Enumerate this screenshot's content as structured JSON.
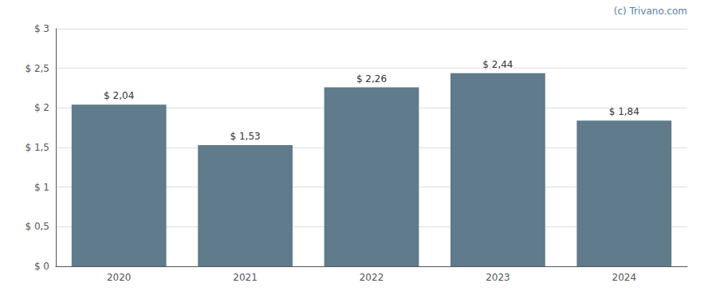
{
  "chart_data": {
    "type": "bar",
    "categories": [
      "2020",
      "2021",
      "2022",
      "2023",
      "2024"
    ],
    "values": [
      2.04,
      1.53,
      2.26,
      2.44,
      1.84
    ],
    "value_labels": [
      "$ 2,04",
      "$ 1,53",
      "$ 2,26",
      "$ 2,44",
      "$ 1,84"
    ],
    "color": "#607b8b",
    "ylim": [
      0,
      3.0
    ],
    "yticks": [
      {
        "value": 0,
        "label": "$ 0"
      },
      {
        "value": 0.5,
        "label": "$ 0,5"
      },
      {
        "value": 1.0,
        "label": "$ 1"
      },
      {
        "value": 1.5,
        "label": "$ 1,5"
      },
      {
        "value": 2.0,
        "label": "$ 2"
      },
      {
        "value": 2.5,
        "label": "$ 2,5"
      },
      {
        "value": 3.0,
        "label": "$ 3"
      }
    ],
    "grid": true,
    "data_labels": true,
    "annotations": [
      "(c) Trivano.com"
    ]
  }
}
